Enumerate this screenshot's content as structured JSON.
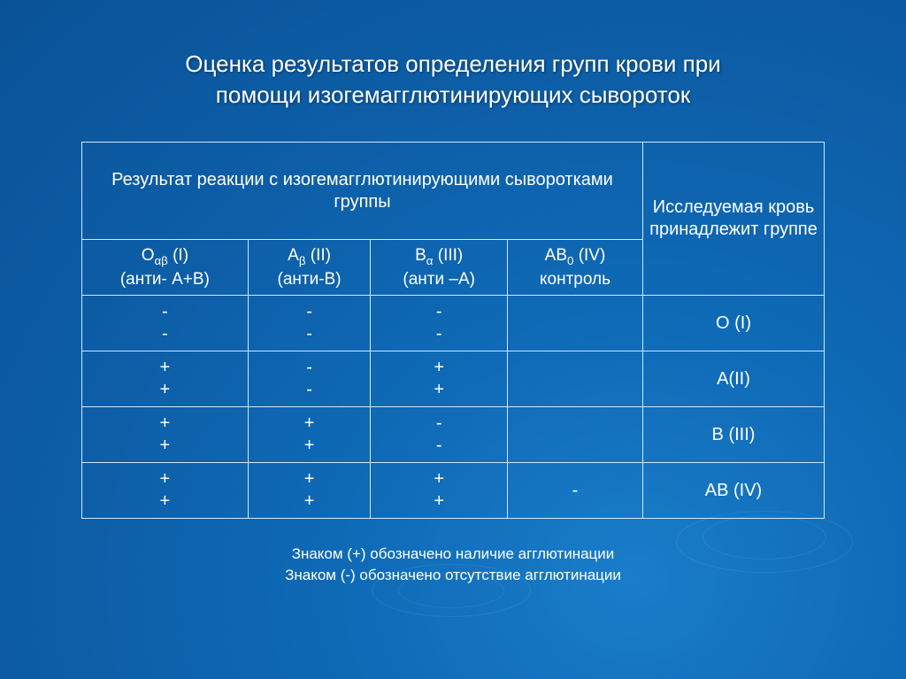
{
  "title_line1": "Оценка  результатов  определения  групп  крови  при",
  "title_line2": "помощи  изогемагглютинирующих  сывороток",
  "table": {
    "header_left": "Результат реакции с изогемагглютинирующими сыворотками группы",
    "header_right": "Исследуемая кровь принадлежит группе",
    "subheaders": [
      "O<sub>αβ</sub> (I)<br>(анти- А+В)",
      "A<sub>β</sub> (II)<br>(анти-В)",
      "B<sub>α</sub> (III)<br>(анти –А)",
      "AB<sub>0</sub> (IV)<br>контроль"
    ],
    "rows": [
      {
        "cells": [
          "-<br>-",
          "-<br>-",
          "-<br>-",
          ""
        ],
        "result": "O (I)"
      },
      {
        "cells": [
          "+<br>+",
          "-<br>-",
          "+<br>+",
          ""
        ],
        "result": "A(II)"
      },
      {
        "cells": [
          "+<br>+",
          "+<br>+",
          "-<br>-",
          ""
        ],
        "result": "B (III)"
      },
      {
        "cells": [
          "+<br>+",
          "+<br>+",
          "+<br>+",
          "-"
        ],
        "result": "AB (IV)"
      }
    ]
  },
  "footnote_line1": "Знаком (+) обозначено наличие агглютинации",
  "footnote_line2": "Знаком (-) обозначено отсутствие агглютинации",
  "colors": {
    "text": "#ffffff",
    "border": "#cfe8ff",
    "bg_center": "#1a7dc9",
    "bg_edge": "#0a5298"
  }
}
